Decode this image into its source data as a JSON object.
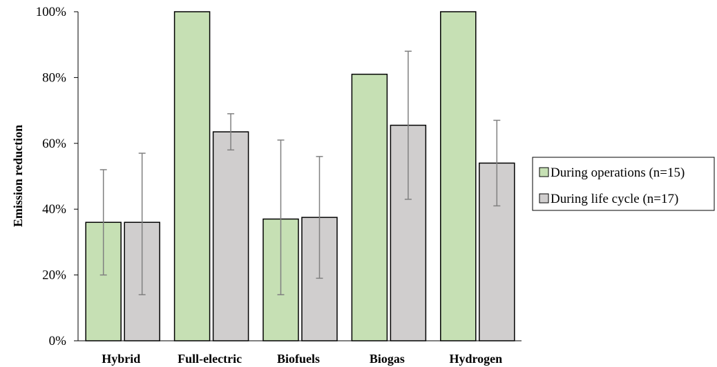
{
  "chart_data": {
    "type": "bar",
    "title": "",
    "xlabel": "",
    "ylabel": "Emission reduction",
    "ylim": [
      0,
      1
    ],
    "yticks": [
      0,
      0.2,
      0.4,
      0.6,
      0.8,
      1.0
    ],
    "ytick_labels": [
      "0%",
      "20%",
      "40%",
      "60%",
      "80%",
      "100%"
    ],
    "categories": [
      "Hybrid",
      "Full-electric",
      "Biofuels",
      "Biogas",
      "Hydrogen"
    ],
    "series": [
      {
        "name": "During operations (n=15)",
        "color": "#c6e0b4",
        "values": [
          0.36,
          1.0,
          0.37,
          0.81,
          1.0
        ],
        "error_low": [
          0.2,
          1.0,
          0.14,
          0.81,
          1.0
        ],
        "error_high": [
          0.52,
          1.0,
          0.61,
          0.81,
          1.0
        ]
      },
      {
        "name": "During life cycle (n=17)",
        "color": "#d0cece",
        "values": [
          0.36,
          0.635,
          0.375,
          0.655,
          0.54
        ],
        "error_low": [
          0.14,
          0.58,
          0.19,
          0.43,
          0.41
        ],
        "error_high": [
          0.57,
          0.69,
          0.56,
          0.88,
          0.67
        ]
      }
    ],
    "grid": false,
    "legend_position": "right"
  }
}
